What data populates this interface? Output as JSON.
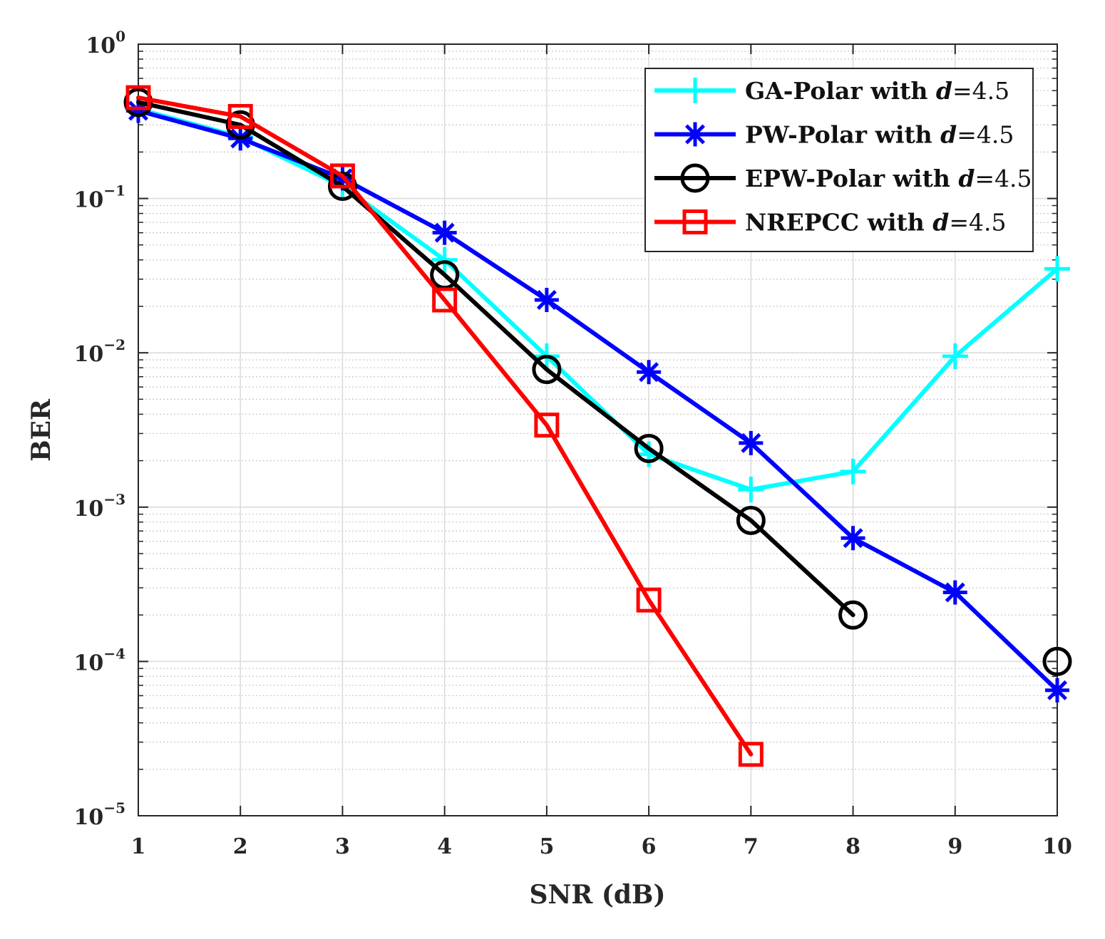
{
  "chart_data": {
    "type": "line",
    "xlabel": "SNR (dB)",
    "ylabel": "BER",
    "xscale": "linear",
    "yscale": "log",
    "xlim": [
      1,
      10
    ],
    "ylim": [
      1e-05,
      1
    ],
    "xticks": [
      1,
      2,
      3,
      4,
      5,
      6,
      7,
      8,
      9,
      10
    ],
    "yticks": [
      {
        "value": 1,
        "base": "10",
        "exp": "0"
      },
      {
        "value": 0.1,
        "base": "10",
        "exp": "−1"
      },
      {
        "value": 0.01,
        "base": "10",
        "exp": "−2"
      },
      {
        "value": 0.001,
        "base": "10",
        "exp": "−3"
      },
      {
        "value": 0.0001,
        "base": "10",
        "exp": "−4"
      },
      {
        "value": 1e-05,
        "base": "10",
        "exp": "−5"
      }
    ],
    "grid": true,
    "minor_grid": true,
    "legend_position": "top-right",
    "series": [
      {
        "name": "GA-Polar with d=4.5",
        "label_prefix": "GA-Polar with ",
        "label_var": "d",
        "label_suffix": "=4.5",
        "color": "#00ffff",
        "marker": "plus",
        "x": [
          1,
          2,
          3,
          4,
          5,
          6,
          7,
          8,
          9,
          10
        ],
        "y": [
          0.38,
          0.25,
          0.12,
          0.04,
          0.0095,
          0.0022,
          0.0013,
          0.0017,
          0.0095,
          0.035
        ]
      },
      {
        "name": "PW-Polar with d=4.5",
        "label_prefix": "PW-Polar with ",
        "label_var": "d",
        "label_suffix": "=4.5",
        "color": "#0000ff",
        "marker": "asterisk",
        "x": [
          1,
          2,
          3,
          4,
          5,
          6,
          7,
          8,
          9,
          10
        ],
        "y": [
          0.37,
          0.245,
          0.135,
          0.06,
          0.022,
          0.0075,
          0.0026,
          0.00063,
          0.00028,
          6.5e-05
        ]
      },
      {
        "name": "EPW-Polar with d=4.5",
        "label_prefix": "EPW-Polar with ",
        "label_var": "d",
        "label_suffix": "=4.5",
        "color": "#000000",
        "marker": "circle",
        "x": [
          1,
          2,
          3,
          4,
          5,
          6,
          7,
          8
        ],
        "y": [
          0.42,
          0.3,
          0.12,
          0.032,
          0.0078,
          0.0024,
          0.00082,
          0.0002
        ],
        "extra_markers": [
          {
            "x": 10,
            "y": 0.0001
          }
        ]
      },
      {
        "name": "NREPCC with d=4.5",
        "label_prefix": "NREPCC with ",
        "label_var": "d",
        "label_suffix": "=4.5",
        "color": "#ff0000",
        "marker": "square",
        "x": [
          1,
          2,
          3,
          4,
          5,
          6,
          7
        ],
        "y": [
          0.45,
          0.34,
          0.14,
          0.022,
          0.0034,
          0.00025,
          2.5e-05
        ]
      }
    ]
  }
}
